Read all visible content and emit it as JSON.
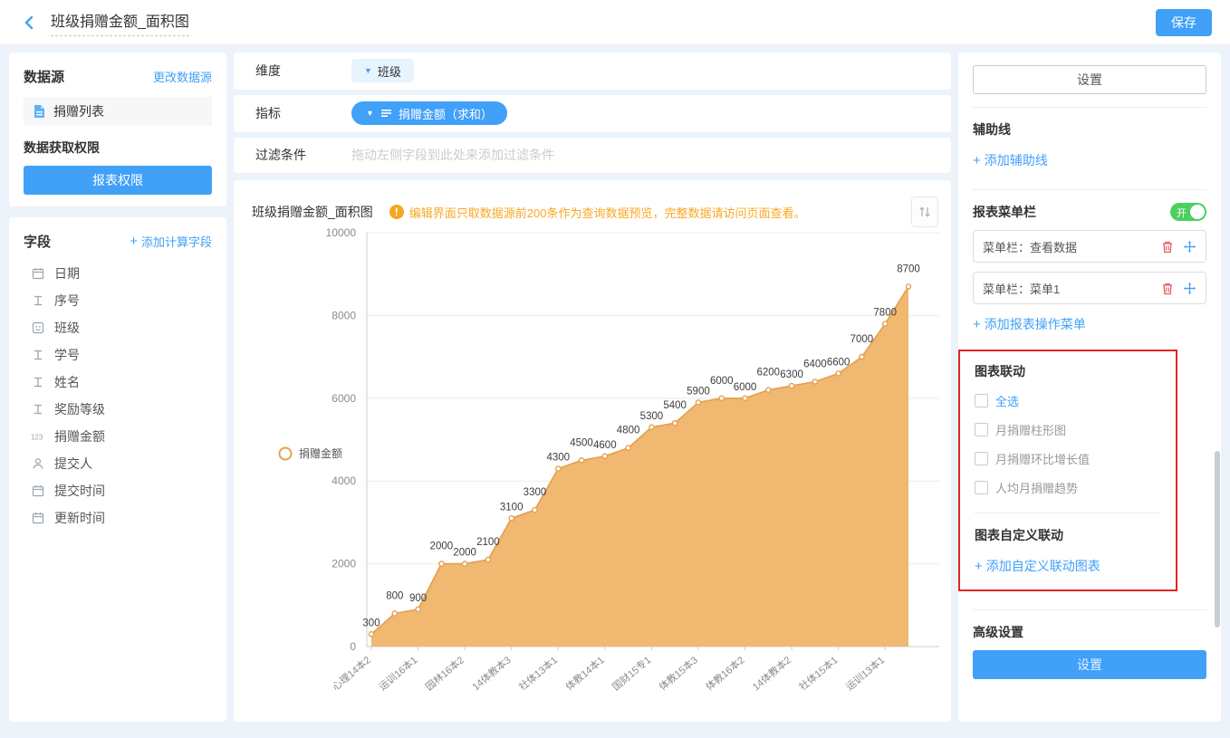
{
  "header": {
    "title": "班级捐赠金额_面积图",
    "save_label": "保存"
  },
  "datasource_panel": {
    "title": "数据源",
    "change_link": "更改数据源",
    "source_name": "捐赠列表",
    "permission_title": "数据获取权限",
    "permission_button": "报表权限"
  },
  "fields_panel": {
    "title": "字段",
    "add_calc_field": "添加计算字段",
    "fields": [
      {
        "name": "日期",
        "icon": "calendar"
      },
      {
        "name": "序号",
        "icon": "text"
      },
      {
        "name": "班级",
        "icon": "dimension"
      },
      {
        "name": "学号",
        "icon": "text"
      },
      {
        "name": "姓名",
        "icon": "text"
      },
      {
        "name": "奖励等级",
        "icon": "text"
      },
      {
        "name": "捐赠金额",
        "icon": "number"
      },
      {
        "name": "提交人",
        "icon": "person"
      },
      {
        "name": "提交时间",
        "icon": "calendar"
      },
      {
        "name": "更新时间",
        "icon": "calendar"
      }
    ]
  },
  "config": {
    "dimension_label": "维度",
    "dimension_value": "班级",
    "metric_label": "指标",
    "metric_value": "捐赠金额（求和）",
    "filter_label": "过滤条件",
    "filter_placeholder": "拖动左侧字段到此处来添加过滤条件"
  },
  "chart_header": {
    "title": "班级捐赠金额_面积图",
    "warning_icon": "!",
    "warning": "编辑界面只取数据源前200条作为查询数据预览，完整数据请访问页面查看。"
  },
  "chart_data": {
    "type": "area",
    "title": "班级捐赠金额_面积图",
    "legend": [
      {
        "name": "捐赠金额"
      }
    ],
    "legend_position": "left",
    "values": [
      300,
      800,
      900,
      2000,
      2000,
      2100,
      3100,
      3300,
      4300,
      4500,
      4600,
      4800,
      5300,
      5400,
      5900,
      6000,
      6000,
      6200,
      6300,
      6400,
      6600,
      7000,
      7800,
      8700
    ],
    "x_tick_labels": [
      "心理14本2",
      "运训16本1",
      "园林16本2",
      "14体教本3",
      "社体13本1",
      "体教14本1",
      "国财15专1",
      "体教15本3",
      "体教16本2",
      "14体教本2",
      "社体15本1",
      "运训13本1"
    ],
    "label_every": 2,
    "ylim": [
      0,
      10000
    ],
    "y_ticks": [
      0,
      2000,
      4000,
      6000,
      8000,
      10000
    ],
    "grid": true,
    "area_color": "#efb264",
    "line_color": "#e2a050"
  },
  "settings_panel": {
    "settings_button": "设置",
    "aux_line": {
      "title": "辅助线",
      "add_label": "添加辅助线"
    },
    "menu_bar": {
      "title": "报表菜单栏",
      "toggle_state": "开",
      "items": [
        "菜单栏：查看数据",
        "菜单栏：菜单1"
      ],
      "add_label": "添加报表操作菜单"
    },
    "linkage": {
      "title": "图表联动",
      "select_all": "全选",
      "options": [
        "月捐赠柱形图",
        "月捐赠环比增长值",
        "人均月捐赠趋势"
      ],
      "custom_title": "图表自定义联动",
      "custom_add_label": "添加自定义联动图表"
    },
    "advanced": {
      "title": "高级设置",
      "button": "设置"
    }
  },
  "colors": {
    "accent": "#41a0f8",
    "warning": "#f9a825",
    "highlight_box": "#e12525",
    "toggle_on": "#4cd05e",
    "danger": "#e25c64"
  }
}
